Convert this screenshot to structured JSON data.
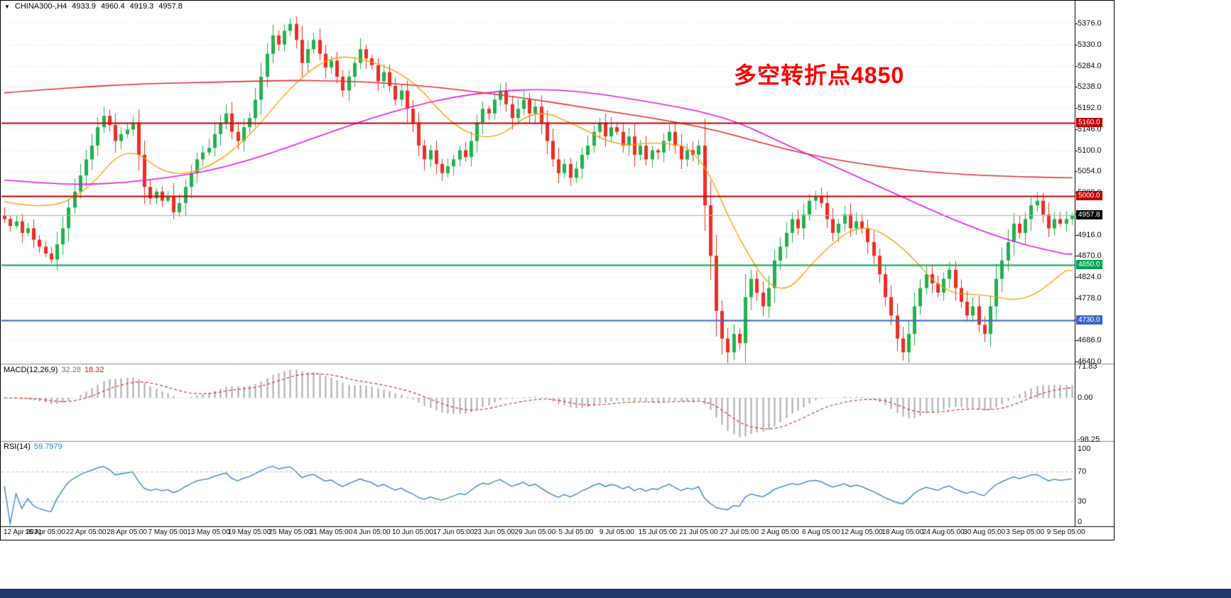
{
  "info_bar": {
    "dropdown_icon": "▼",
    "symbol_period": "CHINA300-,H4",
    "open": "4933.9",
    "high": "4960.4",
    "low": "4919.3",
    "close": "4957.8"
  },
  "annotation": {
    "text": "多空转折点4850",
    "color": "#fe0000"
  },
  "colors": {
    "background": "#ffffff",
    "candle_up": "#22b14c",
    "candle_down": "#ee2e24",
    "grid": "#e2e2e2",
    "axis_line": "#000000",
    "current_price_line": "#b4b4b4",
    "separator": "#8a8a8a"
  },
  "chart_data": {
    "type": "candlestick",
    "title": "CHINA300- H4 candlestick chart with moving averages, MACD and RSI",
    "y_axis": {
      "min": 4640.0,
      "max": 5376.0,
      "tick_step": 46.0,
      "tick_labels": [
        "5376.0",
        "5330.0",
        "5284.0",
        "5238.0",
        "5192.0",
        "5146.0",
        "5100.0",
        "5054.0",
        "5008.0",
        "4962.0",
        "4916.0",
        "4870.0",
        "4824.0",
        "4778.0",
        "4732.0",
        "4686.0",
        "4640.0"
      ]
    },
    "x_labels": [
      "12 Apr 2021",
      "16 Apr 05:00",
      "22 Apr 05:00",
      "28 Apr 05:00",
      "7 May 05:00",
      "13 May 05:00",
      "19 May 05:00",
      "25 May 05:00",
      "31 May 05:00",
      "4 Jun 05:00",
      "10 Jun 05:00",
      "17 Jun 05:00",
      "23 Jun 05:00",
      "29 Jun 05:00",
      "5 Jul 05:00",
      "9 Jul 05:00",
      "15 Jul 05:00",
      "21 Jul 05:00",
      "27 Jul 05:00",
      "2 Aug 05:00",
      "6 Aug 05:00",
      "12 Aug 05:00",
      "18 Aug 05:00",
      "24 Aug 05:00",
      "30 Aug 05:00",
      "3 Sep 05:00",
      "9 Sep 05:00"
    ],
    "candles_per_label": 7,
    "closes": [
      4950,
      4935,
      4945,
      4920,
      4930,
      4905,
      4890,
      4875,
      4862,
      4895,
      4930,
      4975,
      5010,
      5045,
      5080,
      5110,
      5150,
      5175,
      5155,
      5120,
      5135,
      5145,
      5160,
      5090,
      5020,
      4995,
      5010,
      4990,
      5000,
      4965,
      4985,
      5020,
      5050,
      5080,
      5095,
      5105,
      5135,
      5160,
      5180,
      5140,
      5120,
      5150,
      5170,
      5210,
      5260,
      5310,
      5350,
      5330,
      5360,
      5375,
      5340,
      5290,
      5320,
      5340,
      5310,
      5280,
      5295,
      5260,
      5230,
      5260,
      5290,
      5320,
      5300,
      5285,
      5250,
      5270,
      5240,
      5210,
      5230,
      5190,
      5160,
      5110,
      5080,
      5100,
      5070,
      5050,
      5065,
      5080,
      5100,
      5085,
      5120,
      5160,
      5190,
      5180,
      5210,
      5230,
      5200,
      5170,
      5190,
      5210,
      5180,
      5195,
      5160,
      5120,
      5080,
      5050,
      5070,
      5040,
      5060,
      5090,
      5110,
      5140,
      5160,
      5130,
      5150,
      5140,
      5110,
      5130,
      5090,
      5110,
      5080,
      5100,
      5095,
      5120,
      5140,
      5110,
      5080,
      5100,
      5090,
      5110,
      4980,
      4870,
      4750,
      4690,
      4660,
      4700,
      4680,
      4780,
      4820,
      4790,
      4760,
      4800,
      4860,
      4890,
      4920,
      4950,
      4930,
      4960,
      4990,
      5000,
      4985,
      4950,
      4920,
      4940,
      4960,
      4930,
      4945,
      4930,
      4900,
      4870,
      4830,
      4780,
      4740,
      4690,
      4660,
      4700,
      4760,
      4800,
      4830,
      4810,
      4790,
      4820,
      4840,
      4800,
      4770,
      4740,
      4760,
      4720,
      4700,
      4760,
      4820,
      4860,
      4900,
      4940,
      4920,
      4950,
      4980,
      4990,
      4960,
      4930,
      4950,
      4940,
      4950,
      4957.8
    ],
    "current_price": {
      "value": 4957.8,
      "label": "4957.8",
      "box_color": "#000000"
    },
    "horizontal_lines": [
      {
        "price": 5160.0,
        "label": "5160.0",
        "color": "#c00000"
      },
      {
        "price": 5000.0,
        "label": "5000.0",
        "color": "#c00000"
      },
      {
        "price": 4850.0,
        "label": "4850.0",
        "color": "#00a651"
      },
      {
        "price": 4730.0,
        "label": "4730.0",
        "color": "#3a66cc"
      }
    ],
    "moving_averages": [
      {
        "name": "ma-fast-orange",
        "color": "#ff9c00",
        "width": 1.3,
        "waypoints": [
          4988,
          4970,
          5008,
          5115,
          5042,
          5060,
          5128,
          5238,
          5308,
          5295,
          5255,
          5150,
          5118,
          5192,
          5155,
          5108,
          5118,
          5105,
          4900,
          4770,
          4878,
          4945,
          4892,
          4788,
          4786,
          4768,
          4838
        ]
      },
      {
        "name": "ma-mid-magenta",
        "color": "#e816e8",
        "width": 1.6,
        "waypoints": [
          5035,
          5028,
          5025,
          5030,
          5040,
          5055,
          5078,
          5108,
          5140,
          5170,
          5196,
          5216,
          5228,
          5233,
          5229,
          5217,
          5202,
          5186,
          5160,
          5118,
          5078,
          5038,
          4998,
          4958,
          4922,
          4893,
          4874
        ]
      },
      {
        "name": "ma-slow-red",
        "color": "#e63030",
        "width": 1.6,
        "waypoints": [
          5225,
          5232,
          5238,
          5243,
          5246,
          5248,
          5250,
          5252,
          5251,
          5248,
          5242,
          5233,
          5222,
          5210,
          5196,
          5182,
          5168,
          5152,
          5130,
          5105,
          5085,
          5070,
          5058,
          5050,
          5045,
          5042,
          5040
        ]
      }
    ],
    "macd": {
      "name": "MACD(12,26,9)",
      "value_main": "32.28",
      "value_signal": "18.32",
      "fast": 12,
      "slow": 26,
      "signal": 9,
      "axis_labels": [
        "71.83",
        "0.00",
        "-98.25"
      ],
      "hist_color": "#ababab",
      "signal_color": "#dd2222"
    },
    "rsi": {
      "name": "RSI(14)",
      "value": "59.7979",
      "period": 14,
      "levels": [
        70,
        30
      ],
      "axis_labels": [
        "100",
        "70",
        "30",
        "0"
      ],
      "color": "#2e7fd6"
    }
  }
}
